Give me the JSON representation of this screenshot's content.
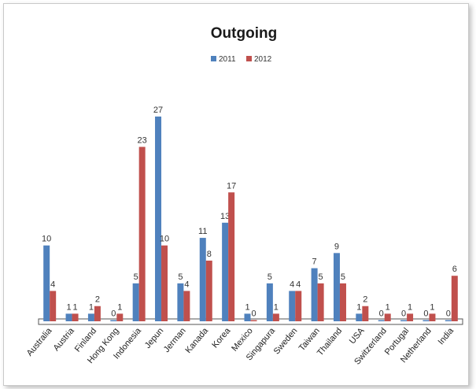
{
  "chart_data": {
    "type": "bar",
    "title": "Outgoing",
    "xlabel": "",
    "ylabel": "",
    "ylim": [
      0,
      28
    ],
    "grid": false,
    "legend_position": "top-center",
    "categories": [
      "Australia",
      "Austria",
      "Finland",
      "Hong Kong",
      "Indonesia",
      "Jepun",
      "Jerman",
      "Kanada",
      "Korea",
      "Mexico",
      "Singapura",
      "Sweden",
      "Taiwan",
      "Thailand",
      "USA",
      "Switzerland",
      "Portugal",
      "Netherland",
      "India"
    ],
    "series": [
      {
        "name": "2011",
        "color": "#4f81bd",
        "values": [
          10,
          1,
          1,
          0,
          5,
          27,
          5,
          11,
          13,
          1,
          5,
          4,
          7,
          9,
          1,
          0,
          0,
          0,
          0
        ]
      },
      {
        "name": "2012",
        "color": "#c0504d",
        "values": [
          4,
          1,
          2,
          1,
          23,
          10,
          4,
          8,
          17,
          0,
          1,
          4,
          5,
          5,
          2,
          1,
          1,
          1,
          6
        ]
      }
    ]
  }
}
